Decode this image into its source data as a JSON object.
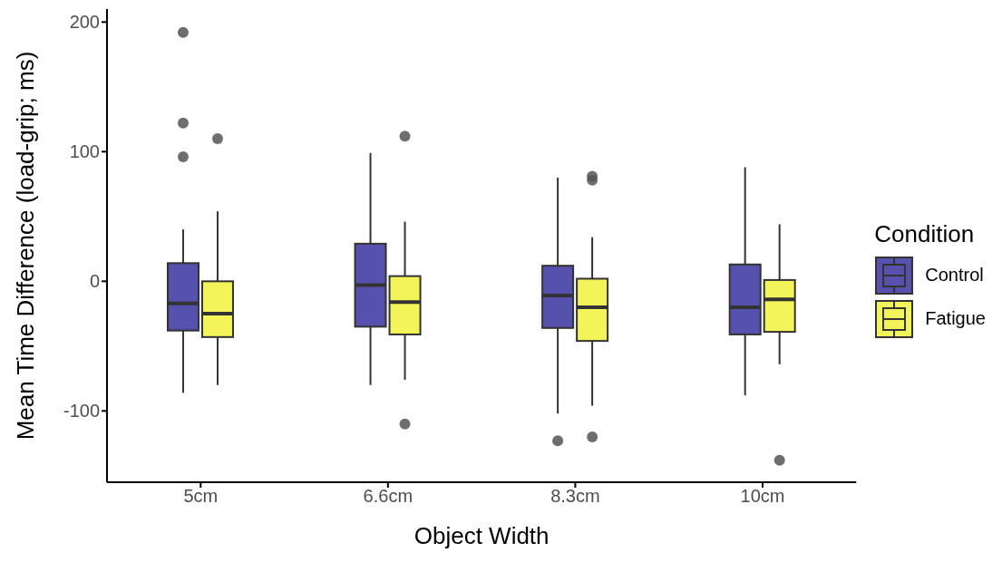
{
  "chart_data": {
    "type": "box",
    "xlabel": "Object Width",
    "ylabel": "Mean Time Difference (load-grip; ms)",
    "legend_title": "Condition",
    "legend": "right",
    "categories": [
      "5cm",
      "6.6cm",
      "8.3cm",
      "10cm"
    ],
    "ylim": [
      -155,
      210
    ],
    "yticks": [
      -100,
      0,
      100,
      200
    ],
    "series": [
      {
        "name": "Control",
        "color": "#5651ad",
        "boxes": [
          {
            "low": -86,
            "q1": -38,
            "median": -17,
            "q3": 14,
            "high": 40,
            "outliers": [
              96,
              122,
              192
            ]
          },
          {
            "low": -80,
            "q1": -35,
            "median": -3,
            "q3": 29,
            "high": 99
          },
          {
            "low": -102,
            "q1": -36,
            "median": -11,
            "q3": 12,
            "high": 80,
            "outliers": [
              -123
            ]
          },
          {
            "low": -88,
            "q1": -41,
            "median": -20,
            "q3": 13,
            "high": 88
          }
        ]
      },
      {
        "name": "Fatigue",
        "color": "#f3f35a",
        "boxes": [
          {
            "low": -80,
            "q1": -43,
            "median": -25,
            "q3": 0,
            "high": 54,
            "outliers": [
              110
            ]
          },
          {
            "low": -76,
            "q1": -41,
            "median": -16,
            "q3": 4,
            "high": 46,
            "outliers": [
              112,
              -110
            ]
          },
          {
            "low": -96,
            "q1": -46,
            "median": -20,
            "q3": 2,
            "high": 34,
            "outliers": [
              81,
              78,
              -120
            ]
          },
          {
            "low": -64,
            "q1": -39,
            "median": -14,
            "q3": 1,
            "high": 44,
            "outliers": [
              -138
            ]
          }
        ]
      }
    ]
  }
}
